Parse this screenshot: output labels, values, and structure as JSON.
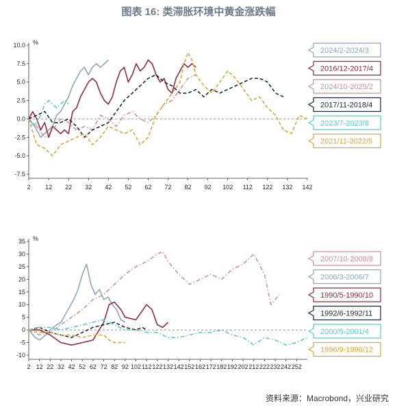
{
  "title": "图表 16: 类滞胀环境中黄金涨跌幅",
  "source": "资料来源：Macrobond，兴业研究",
  "chart_data": [
    {
      "type": "line",
      "ylabel": "%",
      "ylim": [
        -7.5,
        10.0
      ],
      "yticks": [
        "10.0",
        "7.5",
        "5.0",
        "2.5",
        "0.0",
        "-2.5",
        "-5.0",
        "-7.5"
      ],
      "xlim": [
        2,
        142
      ],
      "xticks": [
        "2",
        "12",
        "22",
        "32",
        "42",
        "52",
        "62",
        "72",
        "82",
        "92",
        "102",
        "112",
        "122",
        "132",
        "142"
      ],
      "series": [
        {
          "name": "2024/2-2024/3",
          "color": "#8fa5b6",
          "dash": "solid",
          "x": [
            2,
            5,
            8,
            10,
            12,
            14,
            16,
            18,
            20,
            22,
            24,
            26,
            28,
            30,
            32,
            34,
            36,
            38,
            40,
            42
          ],
          "y": [
            0.0,
            -1.0,
            -2.5,
            -2.0,
            -1.5,
            -1.0,
            0.5,
            1.0,
            2.0,
            3.0,
            4.5,
            5.5,
            6.5,
            7.0,
            6.0,
            7.0,
            7.5,
            7.0,
            7.5,
            8.0
          ]
        },
        {
          "name": "2016/12-2017/4",
          "color": "#8b2a43",
          "dash": "solid",
          "x": [
            2,
            4,
            6,
            8,
            10,
            12,
            14,
            16,
            18,
            20,
            22,
            24,
            26,
            28,
            30,
            32,
            34,
            36,
            38,
            40,
            42,
            44,
            46,
            48,
            50,
            52,
            54,
            56,
            58,
            60,
            62,
            64,
            66,
            68,
            70,
            72,
            74,
            76,
            78,
            80,
            82,
            84,
            86
          ],
          "y": [
            0.0,
            1.0,
            0.0,
            -1.5,
            -0.5,
            -2.5,
            -1.0,
            -1.5,
            -2.0,
            -1.5,
            -2.0,
            1.0,
            1.5,
            3.0,
            4.0,
            5.0,
            5.5,
            5.0,
            3.5,
            2.5,
            2.0,
            3.0,
            5.0,
            6.5,
            7.0,
            5.0,
            6.0,
            7.5,
            6.5,
            7.0,
            8.0,
            7.5,
            6.0,
            5.0,
            5.5,
            4.0,
            3.5,
            5.5,
            6.5,
            7.5,
            7.0,
            7.5,
            7.0
          ]
        },
        {
          "name": "2024/10-2025/2",
          "color": "#c9909a",
          "dash": "dashdot",
          "x": [
            2,
            6,
            10,
            14,
            18,
            22,
            26,
            30,
            34,
            38,
            42,
            46,
            50,
            54,
            58,
            62,
            66,
            70,
            74,
            78,
            82,
            86
          ],
          "y": [
            0.0,
            -1.0,
            -2.5,
            -1.5,
            0.0,
            -0.5,
            -1.5,
            -1.0,
            -1.5,
            0.5,
            0.0,
            -1.0,
            0.5,
            1.0,
            0.0,
            -0.5,
            0.5,
            2.0,
            2.5,
            4.0,
            5.5,
            6.0
          ]
        },
        {
          "name": "2017/11-2018/4",
          "color": "#1c2430",
          "dash": "dashed",
          "x": [
            2,
            6,
            10,
            14,
            18,
            22,
            26,
            30,
            34,
            38,
            42,
            46,
            50,
            54,
            58,
            62,
            66,
            70,
            74,
            78,
            82,
            86,
            90,
            94,
            98,
            102,
            106,
            110,
            114,
            118,
            122,
            126,
            130
          ],
          "y": [
            0.0,
            0.5,
            1.0,
            -0.5,
            -0.5,
            0.0,
            -1.0,
            -2.5,
            -1.5,
            -1.0,
            -0.5,
            1.0,
            2.5,
            3.5,
            4.5,
            5.5,
            6.0,
            5.0,
            4.5,
            3.5,
            3.5,
            4.0,
            3.0,
            4.0,
            3.5,
            4.0,
            4.5,
            5.0,
            5.5,
            5.5,
            5.0,
            3.5,
            3.0
          ]
        },
        {
          "name": "2023/7-2023/8",
          "color": "#5cc8cc",
          "dash": "dashdot",
          "x": [
            2,
            4,
            6,
            8,
            10,
            12,
            14,
            16,
            18,
            20,
            22
          ],
          "y": [
            0.0,
            -1.0,
            -0.5,
            0.5,
            2.0,
            2.5,
            2.0,
            1.5,
            2.0,
            2.5,
            2.0
          ]
        },
        {
          "name": "2021/11-2022/5",
          "color": "#d4a83a",
          "dash": "dashed",
          "x": [
            2,
            6,
            10,
            14,
            18,
            22,
            26,
            30,
            34,
            38,
            42,
            46,
            50,
            54,
            58,
            62,
            66,
            70,
            74,
            78,
            80,
            82,
            84,
            86,
            90,
            94,
            98,
            102,
            106,
            110,
            114,
            118,
            122,
            126,
            130,
            134,
            138,
            142
          ],
          "y": [
            0.0,
            -3.5,
            -4.0,
            -5.0,
            -3.5,
            -3.0,
            -2.5,
            -2.0,
            -3.5,
            -2.5,
            -1.0,
            -1.5,
            -2.0,
            -1.5,
            -3.5,
            -2.5,
            0.5,
            2.0,
            3.5,
            5.0,
            7.5,
            9.0,
            8.0,
            6.0,
            4.5,
            3.5,
            5.0,
            6.5,
            5.5,
            4.0,
            2.5,
            3.0,
            1.5,
            0.5,
            -1.5,
            -2.0,
            0.5,
            0.0
          ]
        }
      ]
    },
    {
      "type": "line",
      "ylabel": "%",
      "ylim": [
        -10,
        35
      ],
      "yticks": [
        "35",
        "30",
        "25",
        "20",
        "15",
        "10",
        "5",
        "0",
        "-5",
        "-10"
      ],
      "xlim": [
        2,
        262
      ],
      "xticks": [
        "2",
        "12",
        "22",
        "32",
        "42",
        "52",
        "62",
        "72",
        "82",
        "92",
        "102",
        "112",
        "122",
        "132",
        "142",
        "152",
        "162",
        "172",
        "182",
        "192",
        "202",
        "212",
        "222",
        "232",
        "242",
        "252"
      ],
      "series": [
        {
          "name": "2007/10-2008/8",
          "color": "#c9909a",
          "dash": "dashdot",
          "x": [
            2,
            12,
            22,
            32,
            42,
            52,
            62,
            72,
            82,
            92,
            102,
            112,
            122,
            127,
            132,
            142,
            152,
            162,
            172,
            182,
            192,
            202,
            212,
            222,
            228,
            232,
            236
          ],
          "y": [
            0,
            -2,
            -1,
            2,
            5,
            8,
            12,
            14,
            18,
            22,
            25,
            27,
            30,
            31,
            27,
            22,
            18,
            20,
            22,
            20,
            24,
            26,
            30,
            22,
            10,
            12,
            14
          ]
        },
        {
          "name": "2006/3-2006/7",
          "color": "#8fa5b6",
          "dash": "solid",
          "x": [
            2,
            8,
            12,
            18,
            22,
            28,
            32,
            36,
            40,
            44,
            48,
            52,
            56,
            60,
            64,
            68,
            72,
            76,
            80,
            84,
            88,
            92
          ],
          "y": [
            0,
            -3,
            -4,
            -2,
            0,
            2,
            3,
            6,
            9,
            12,
            16,
            22,
            26,
            18,
            14,
            16,
            12,
            13,
            10,
            8,
            4,
            3
          ]
        },
        {
          "name": "1990/5-1990/10",
          "color": "#8b2a43",
          "dash": "solid",
          "x": [
            2,
            12,
            22,
            32,
            42,
            52,
            62,
            72,
            77,
            82,
            88,
            92,
            102,
            112,
            117,
            122,
            127,
            132
          ],
          "y": [
            0,
            0,
            -2,
            -5,
            -6,
            -5,
            -4,
            3,
            10,
            11,
            8,
            5,
            4,
            10,
            8,
            2,
            1,
            3
          ]
        },
        {
          "name": "1992/6-1992/11",
          "color": "#1c2430",
          "dash": "dashed",
          "x": [
            2,
            12,
            22,
            32,
            42,
            52,
            62,
            72,
            82,
            92,
            102,
            108,
            112
          ],
          "y": [
            0,
            1,
            -1,
            -2,
            -3,
            -1,
            1,
            2,
            3,
            1,
            0,
            1,
            0
          ]
        },
        {
          "name": "2000/5-2001/4",
          "color": "#5cc8cc",
          "dash": "dashdot",
          "x": [
            2,
            12,
            22,
            32,
            42,
            52,
            62,
            72,
            82,
            92,
            102,
            112,
            122,
            132,
            142,
            152,
            162,
            172,
            182,
            192,
            202,
            212,
            222,
            232,
            242,
            252,
            262
          ],
          "y": [
            0,
            1,
            1,
            0,
            1,
            2,
            3,
            4,
            2,
            0,
            0,
            -1,
            -1,
            -3,
            -3,
            -2,
            -1,
            -1,
            0,
            -2,
            -3,
            -6,
            -3,
            -4,
            -6,
            -5,
            -3
          ]
        },
        {
          "name": "1996/9-1996/12",
          "color": "#d4a83a",
          "dash": "dashed",
          "x": [
            2,
            12,
            22,
            32,
            42,
            52,
            62,
            72,
            77,
            82,
            87,
            92
          ],
          "y": [
            0,
            -1,
            -1,
            -2,
            -2,
            -3,
            -2,
            -2,
            -4,
            -5,
            -5,
            -5
          ]
        }
      ]
    }
  ]
}
